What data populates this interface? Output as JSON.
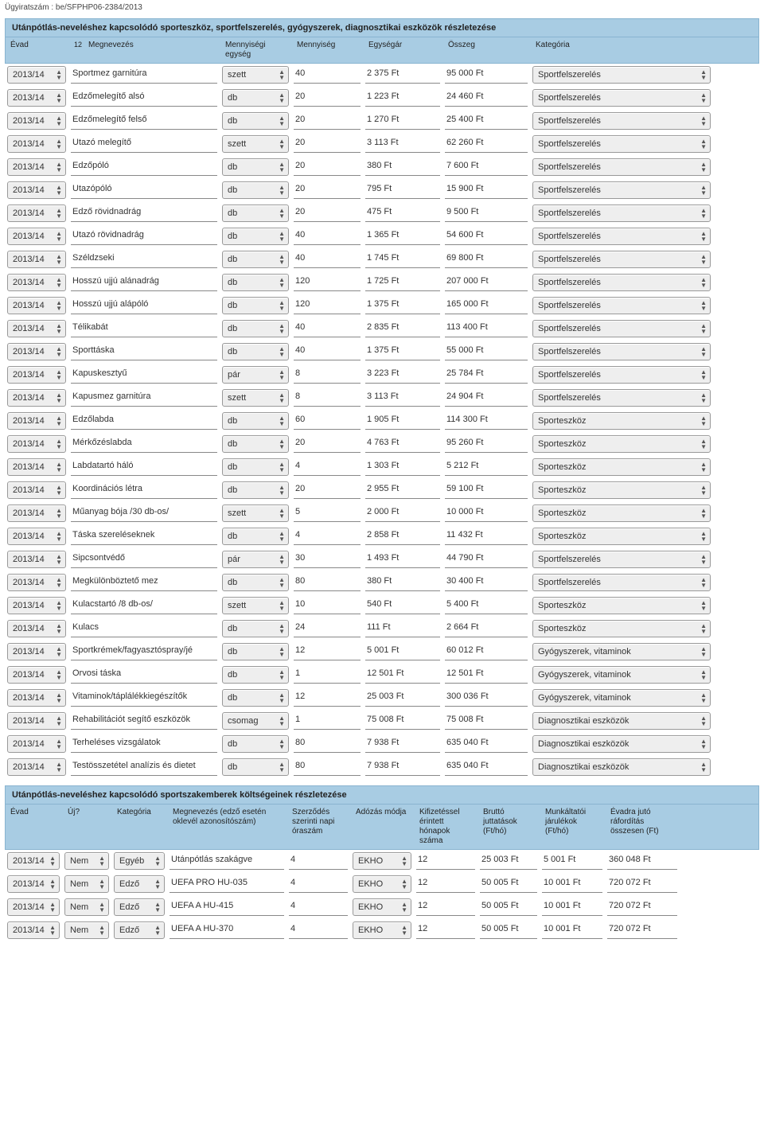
{
  "docNumber": "Ügyiratszám : be/SFPHP06-2384/2013",
  "section1": {
    "title": "Utánpótlás-neveléshez kapcsolódó sporteszköz, sportfelszerelés, gyógyszerek, diagnosztikai eszközök részletezése",
    "headerNote": "12",
    "headers": [
      "Évad",
      "Megnevezés",
      "Mennyiségi egység",
      "Mennyiség",
      "Egységár",
      "Összeg",
      "Kategória"
    ],
    "rows": [
      {
        "year": "2013/14",
        "name": "Sportmez garnitúra",
        "unit": "szett",
        "qty": "40",
        "price": "2 375 Ft",
        "sum": "95 000  Ft",
        "cat": "Sportfelszerelés"
      },
      {
        "year": "2013/14",
        "name": "Edzőmelegítő alsó",
        "unit": "db",
        "qty": "20",
        "price": "1 223 Ft",
        "sum": "24 460  Ft",
        "cat": "Sportfelszerelés"
      },
      {
        "year": "2013/14",
        "name": "Edzőmelegítő felső",
        "unit": "db",
        "qty": "20",
        "price": "1 270 Ft",
        "sum": "25 400  Ft",
        "cat": "Sportfelszerelés"
      },
      {
        "year": "2013/14",
        "name": "Utazó melegítő",
        "unit": "szett",
        "qty": "20",
        "price": "3 113 Ft",
        "sum": "62 260  Ft",
        "cat": "Sportfelszerelés"
      },
      {
        "year": "2013/14",
        "name": "Edzőpóló",
        "unit": "db",
        "qty": "20",
        "price": "380 Ft",
        "sum": "7 600  Ft",
        "cat": "Sportfelszerelés"
      },
      {
        "year": "2013/14",
        "name": "Utazópóló",
        "unit": "db",
        "qty": "20",
        "price": "795 Ft",
        "sum": "15 900  Ft",
        "cat": "Sportfelszerelés"
      },
      {
        "year": "2013/14",
        "name": "Edző rövidnadrág",
        "unit": "db",
        "qty": "20",
        "price": "475 Ft",
        "sum": "9 500  Ft",
        "cat": "Sportfelszerelés"
      },
      {
        "year": "2013/14",
        "name": "Utazó rövidnadrág",
        "unit": "db",
        "qty": "40",
        "price": "1 365 Ft",
        "sum": "54 600  Ft",
        "cat": "Sportfelszerelés"
      },
      {
        "year": "2013/14",
        "name": "Széldzseki",
        "unit": "db",
        "qty": "40",
        "price": "1 745 Ft",
        "sum": "69 800  Ft",
        "cat": "Sportfelszerelés"
      },
      {
        "year": "2013/14",
        "name": "Hosszú ujjú alánadrág",
        "unit": "db",
        "qty": "120",
        "price": "1 725 Ft",
        "sum": "207 000  Ft",
        "cat": "Sportfelszerelés"
      },
      {
        "year": "2013/14",
        "name": "Hosszú ujjú alápóló",
        "unit": "db",
        "qty": "120",
        "price": "1 375 Ft",
        "sum": "165 000  Ft",
        "cat": "Sportfelszerelés"
      },
      {
        "year": "2013/14",
        "name": "Télikabát",
        "unit": "db",
        "qty": "40",
        "price": "2 835 Ft",
        "sum": "113 400  Ft",
        "cat": "Sportfelszerelés"
      },
      {
        "year": "2013/14",
        "name": "Sporttáska",
        "unit": "db",
        "qty": "40",
        "price": "1 375 Ft",
        "sum": "55 000  Ft",
        "cat": "Sportfelszerelés"
      },
      {
        "year": "2013/14",
        "name": "Kapuskesztyű",
        "unit": "pár",
        "qty": "8",
        "price": "3 223 Ft",
        "sum": "25 784  Ft",
        "cat": "Sportfelszerelés"
      },
      {
        "year": "2013/14",
        "name": "Kapusmez garnitúra",
        "unit": "szett",
        "qty": "8",
        "price": "3 113 Ft",
        "sum": "24 904  Ft",
        "cat": "Sportfelszerelés"
      },
      {
        "year": "2013/14",
        "name": "Edzőlabda",
        "unit": "db",
        "qty": "60",
        "price": "1 905 Ft",
        "sum": "114 300  Ft",
        "cat": "Sporteszköz"
      },
      {
        "year": "2013/14",
        "name": "Mérkőzéslabda",
        "unit": "db",
        "qty": "20",
        "price": "4 763 Ft",
        "sum": "95 260  Ft",
        "cat": "Sporteszköz"
      },
      {
        "year": "2013/14",
        "name": "Labdatartó háló",
        "unit": "db",
        "qty": "4",
        "price": "1 303 Ft",
        "sum": "5 212  Ft",
        "cat": "Sporteszköz"
      },
      {
        "year": "2013/14",
        "name": "Koordinációs létra",
        "unit": "db",
        "qty": "20",
        "price": "2 955 Ft",
        "sum": "59 100  Ft",
        "cat": "Sporteszköz"
      },
      {
        "year": "2013/14",
        "name": "Műanyag bója /30 db-os/",
        "unit": "szett",
        "qty": "5",
        "price": "2 000 Ft",
        "sum": "10 000  Ft",
        "cat": "Sporteszköz"
      },
      {
        "year": "2013/14",
        "name": "Táska szereléseknek",
        "unit": "db",
        "qty": "4",
        "price": "2 858 Ft",
        "sum": "11 432  Ft",
        "cat": "Sporteszköz"
      },
      {
        "year": "2013/14",
        "name": "Sipcsontvédő",
        "unit": "pár",
        "qty": "30",
        "price": "1 493 Ft",
        "sum": "44 790  Ft",
        "cat": "Sportfelszerelés"
      },
      {
        "year": "2013/14",
        "name": "Megkülönböztető mez",
        "unit": "db",
        "qty": "80",
        "price": "380 Ft",
        "sum": "30 400  Ft",
        "cat": "Sportfelszerelés"
      },
      {
        "year": "2013/14",
        "name": "Kulacstartó /8 db-os/",
        "unit": "szett",
        "qty": "10",
        "price": "540 Ft",
        "sum": "5 400  Ft",
        "cat": "Sporteszköz"
      },
      {
        "year": "2013/14",
        "name": "Kulacs",
        "unit": "db",
        "qty": "24",
        "price": "111 Ft",
        "sum": "2 664  Ft",
        "cat": "Sporteszköz"
      },
      {
        "year": "2013/14",
        "name": "Sportkrémek/fagyasztóspray/jé",
        "unit": "db",
        "qty": "12",
        "price": "5 001 Ft",
        "sum": "60 012  Ft",
        "cat": "Gyógyszerek, vitaminok"
      },
      {
        "year": "2013/14",
        "name": "Orvosi táska",
        "unit": "db",
        "qty": "1",
        "price": "12 501 Ft",
        "sum": "12 501  Ft",
        "cat": "Gyógyszerek, vitaminok"
      },
      {
        "year": "2013/14",
        "name": "Vitaminok/táplálékkiegészítők",
        "unit": "db",
        "qty": "12",
        "price": "25 003 Ft",
        "sum": "300 036  Ft",
        "cat": "Gyógyszerek, vitaminok"
      },
      {
        "year": "2013/14",
        "name": "Rehabilitációt segítő eszközök",
        "unit": "csomag",
        "qty": "1",
        "price": "75 008 Ft",
        "sum": "75 008  Ft",
        "cat": "Diagnosztikai eszközök"
      },
      {
        "year": "2013/14",
        "name": "Terheléses vizsgálatok",
        "unit": "db",
        "qty": "80",
        "price": "7 938 Ft",
        "sum": "635 040  Ft",
        "cat": "Diagnosztikai eszközök"
      },
      {
        "year": "2013/14",
        "name": "Testösszetétel analízis és dietet",
        "unit": "db",
        "qty": "80",
        "price": "7 938 Ft",
        "sum": "635 040  Ft",
        "cat": "Diagnosztikai eszközök"
      }
    ]
  },
  "section2": {
    "title": "Utánpótlás-neveléshez kapcsolódó sportszakemberek költségeinek részletezése",
    "headers": [
      "Évad",
      "Új?",
      "Kategória",
      "Megnevezés (edző esetén oklevél azonosítószám)",
      "Szerződés szerinti napi óraszám",
      "Adózás módja",
      "Kifizetéssel érintett hónapok száma",
      "Bruttó juttatások (Ft/hó)",
      "Munkáltatói járulékok (Ft/hó)",
      "Évadra jutó ráfordítás összesen (Ft)"
    ],
    "rows": [
      {
        "year": "2013/14",
        "uj": "Nem",
        "kat": "Egyéb",
        "megnev": "Utánpótlás szakágve",
        "ora": "4",
        "ado": "EKHO",
        "honap": "12",
        "brutto": "25 003 Ft",
        "jarul": "5 001  Ft",
        "evad": "360 048  Ft"
      },
      {
        "year": "2013/14",
        "uj": "Nem",
        "kat": "Edző",
        "megnev": "UEFA PRO HU-035",
        "ora": "4",
        "ado": "EKHO",
        "honap": "12",
        "brutto": "50 005 Ft",
        "jarul": "10 001  Ft",
        "evad": "720 072  Ft"
      },
      {
        "year": "2013/14",
        "uj": "Nem",
        "kat": "Edző",
        "megnev": "UEFA A HU-415",
        "ora": "4",
        "ado": "EKHO",
        "honap": "12",
        "brutto": "50 005 Ft",
        "jarul": "10 001  Ft",
        "evad": "720 072  Ft"
      },
      {
        "year": "2013/14",
        "uj": "Nem",
        "kat": "Edző",
        "megnev": "UEFA A HU-370",
        "ora": "4",
        "ado": "EKHO",
        "honap": "12",
        "brutto": "50 005 Ft",
        "jarul": "10 001  Ft",
        "evad": "720 072  Ft"
      }
    ]
  }
}
